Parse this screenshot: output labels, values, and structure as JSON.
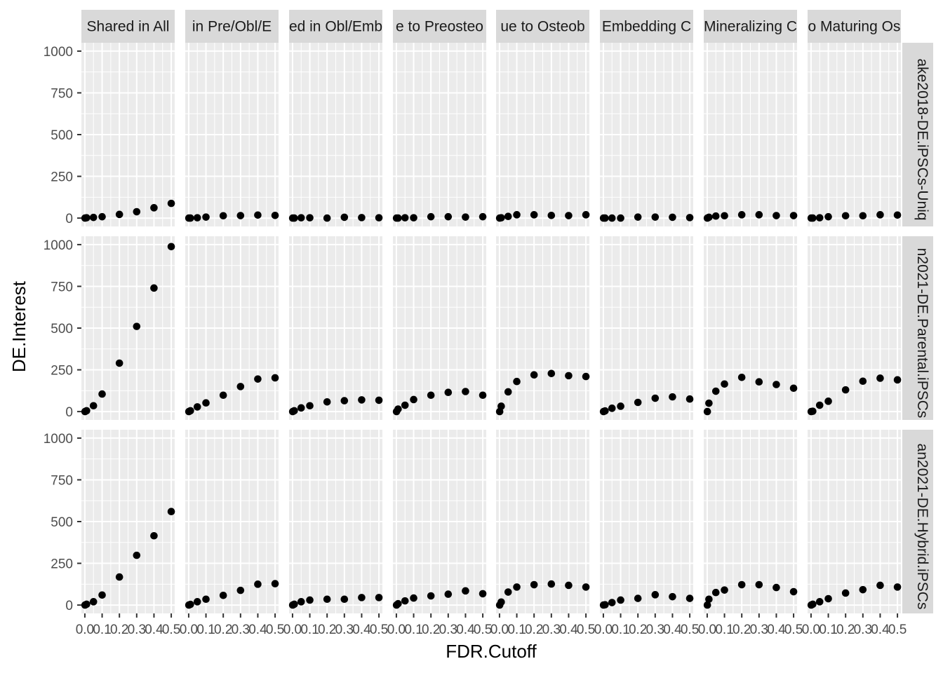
{
  "chart_data": {
    "type": "scatter",
    "title": "",
    "xlabel": "FDR.Cutoff",
    "ylabel": "DE.Interest",
    "xlim": [
      -0.02,
      0.52
    ],
    "ylim": [
      -50,
      1050
    ],
    "grid": true,
    "x_ticks": [
      0.0,
      0.1,
      0.2,
      0.3,
      0.4,
      0.5
    ],
    "x_tick_labels": [
      "0.0",
      "0.1",
      "0.2",
      "0.3",
      "0.4",
      "0.5"
    ],
    "y_ticks": [
      0,
      250,
      500,
      750,
      1000
    ],
    "y_tick_labels": [
      "0",
      "250",
      "500",
      "750",
      "1000"
    ],
    "col_facets": [
      "Shared in All",
      "in Pre/Obl/E",
      "ed in Obl/Emb",
      "e to Preosteo",
      "ue to Osteob",
      "Embedding C",
      "Mineralizing C",
      "o Maturing Os"
    ],
    "row_facets": [
      "ake2018-DE.iPSCs-Uniq",
      "n2021-DE.Parental.iPSCs",
      "an2021-DE.Hybrid.iPSCs"
    ],
    "x": [
      0.001,
      0.01,
      0.05,
      0.1,
      0.2,
      0.3,
      0.4,
      0.5
    ],
    "panels": [
      [
        {
          "x": [
            0.001,
            0.01,
            0.05,
            0.1,
            0.2,
            0.3,
            0.4,
            0.5
          ],
          "y": [
            0,
            2,
            4,
            8,
            22,
            38,
            62,
            88
          ]
        },
        {
          "x": [
            0.001,
            0.01,
            0.05,
            0.1,
            0.2,
            0.3,
            0.4,
            0.5
          ],
          "y": [
            0,
            0,
            2,
            6,
            14,
            15,
            18,
            16
          ]
        },
        {
          "x": [
            0.001,
            0.01,
            0.05,
            0.1,
            0.2,
            0.3,
            0.4,
            0.5
          ],
          "y": [
            0,
            0,
            2,
            2,
            0,
            5,
            3,
            2
          ]
        },
        {
          "x": [
            0.001,
            0.01,
            0.05,
            0.1,
            0.2,
            0.3,
            0.4,
            0.5
          ],
          "y": [
            0,
            0,
            2,
            2,
            8,
            8,
            6,
            8
          ]
        },
        {
          "x": [
            0.001,
            0.01,
            0.05,
            0.1,
            0.2,
            0.3,
            0.4,
            0.5
          ],
          "y": [
            0,
            2,
            10,
            20,
            20,
            16,
            15,
            20
          ]
        },
        {
          "x": [
            0.001,
            0.01,
            0.05,
            0.1,
            0.2,
            0.3,
            0.4,
            0.5
          ],
          "y": [
            0,
            0,
            0,
            0,
            6,
            6,
            5,
            3
          ]
        },
        {
          "x": [
            0.001,
            0.01,
            0.05,
            0.1,
            0.2,
            0.3,
            0.4,
            0.5
          ],
          "y": [
            0,
            5,
            12,
            14,
            20,
            20,
            15,
            15
          ]
        },
        {
          "x": [
            0.001,
            0.01,
            0.05,
            0.1,
            0.2,
            0.3,
            0.4,
            0.5
          ],
          "y": [
            0,
            0,
            2,
            8,
            14,
            14,
            20,
            18
          ]
        }
      ],
      [
        {
          "x": [
            0.001,
            0.01,
            0.05,
            0.1,
            0.2,
            0.3,
            0.4,
            0.5
          ],
          "y": [
            0,
            5,
            35,
            105,
            290,
            510,
            740,
            988
          ]
        },
        {
          "x": [
            0.001,
            0.01,
            0.05,
            0.1,
            0.2,
            0.3,
            0.4,
            0.5
          ],
          "y": [
            0,
            5,
            28,
            52,
            98,
            150,
            195,
            202
          ]
        },
        {
          "x": [
            0.001,
            0.01,
            0.05,
            0.1,
            0.2,
            0.3,
            0.4,
            0.5
          ],
          "y": [
            0,
            5,
            22,
            35,
            58,
            65,
            70,
            68
          ]
        },
        {
          "x": [
            0.001,
            0.01,
            0.05,
            0.1,
            0.2,
            0.3,
            0.4,
            0.5
          ],
          "y": [
            0,
            15,
            38,
            72,
            98,
            115,
            120,
            98
          ]
        },
        {
          "x": [
            0.001,
            0.01,
            0.05,
            0.1,
            0.2,
            0.3,
            0.4,
            0.5
          ],
          "y": [
            0,
            32,
            118,
            180,
            220,
            228,
            215,
            210
          ]
        },
        {
          "x": [
            0.001,
            0.01,
            0.05,
            0.1,
            0.2,
            0.3,
            0.4,
            0.5
          ],
          "y": [
            0,
            4,
            20,
            32,
            55,
            80,
            88,
            75
          ]
        },
        {
          "x": [
            0.001,
            0.01,
            0.05,
            0.1,
            0.2,
            0.3,
            0.4,
            0.5
          ],
          "y": [
            0,
            50,
            122,
            165,
            205,
            178,
            162,
            140
          ]
        },
        {
          "x": [
            0.001,
            0.01,
            0.05,
            0.1,
            0.2,
            0.3,
            0.4,
            0.5
          ],
          "y": [
            0,
            2,
            38,
            62,
            130,
            182,
            200,
            190
          ]
        }
      ],
      [
        {
          "x": [
            0.001,
            0.01,
            0.05,
            0.1,
            0.2,
            0.3,
            0.4,
            0.5
          ],
          "y": [
            0,
            5,
            20,
            60,
            168,
            298,
            415,
            560
          ]
        },
        {
          "x": [
            0.001,
            0.01,
            0.05,
            0.1,
            0.2,
            0.3,
            0.4,
            0.5
          ],
          "y": [
            0,
            4,
            20,
            35,
            58,
            88,
            125,
            128
          ]
        },
        {
          "x": [
            0.001,
            0.01,
            0.05,
            0.1,
            0.2,
            0.3,
            0.4,
            0.5
          ],
          "y": [
            0,
            5,
            20,
            30,
            35,
            35,
            45,
            45
          ]
        },
        {
          "x": [
            0.001,
            0.01,
            0.05,
            0.1,
            0.2,
            0.3,
            0.4,
            0.5
          ],
          "y": [
            0,
            8,
            25,
            42,
            55,
            65,
            85,
            68
          ]
        },
        {
          "x": [
            0.001,
            0.01,
            0.05,
            0.1,
            0.2,
            0.3,
            0.4,
            0.5
          ],
          "y": [
            0,
            18,
            78,
            108,
            122,
            126,
            118,
            108
          ]
        },
        {
          "x": [
            0.001,
            0.01,
            0.05,
            0.1,
            0.2,
            0.3,
            0.4,
            0.5
          ],
          "y": [
            0,
            2,
            15,
            30,
            40,
            62,
            50,
            40
          ]
        },
        {
          "x": [
            0.001,
            0.01,
            0.05,
            0.1,
            0.2,
            0.3,
            0.4,
            0.5
          ],
          "y": [
            0,
            35,
            75,
            90,
            122,
            122,
            105,
            80
          ]
        },
        {
          "x": [
            0.001,
            0.01,
            0.05,
            0.1,
            0.2,
            0.3,
            0.4,
            0.5
          ],
          "y": [
            0,
            5,
            20,
            38,
            72,
            92,
            118,
            108
          ]
        }
      ]
    ],
    "colors": {
      "panel_bg": "#ebebeb",
      "strip_bg": "#d9d9d9",
      "grid_major": "#ffffff",
      "point": "#000000",
      "tick_text": "#4d4d4d",
      "axis_title": "#000000"
    }
  }
}
